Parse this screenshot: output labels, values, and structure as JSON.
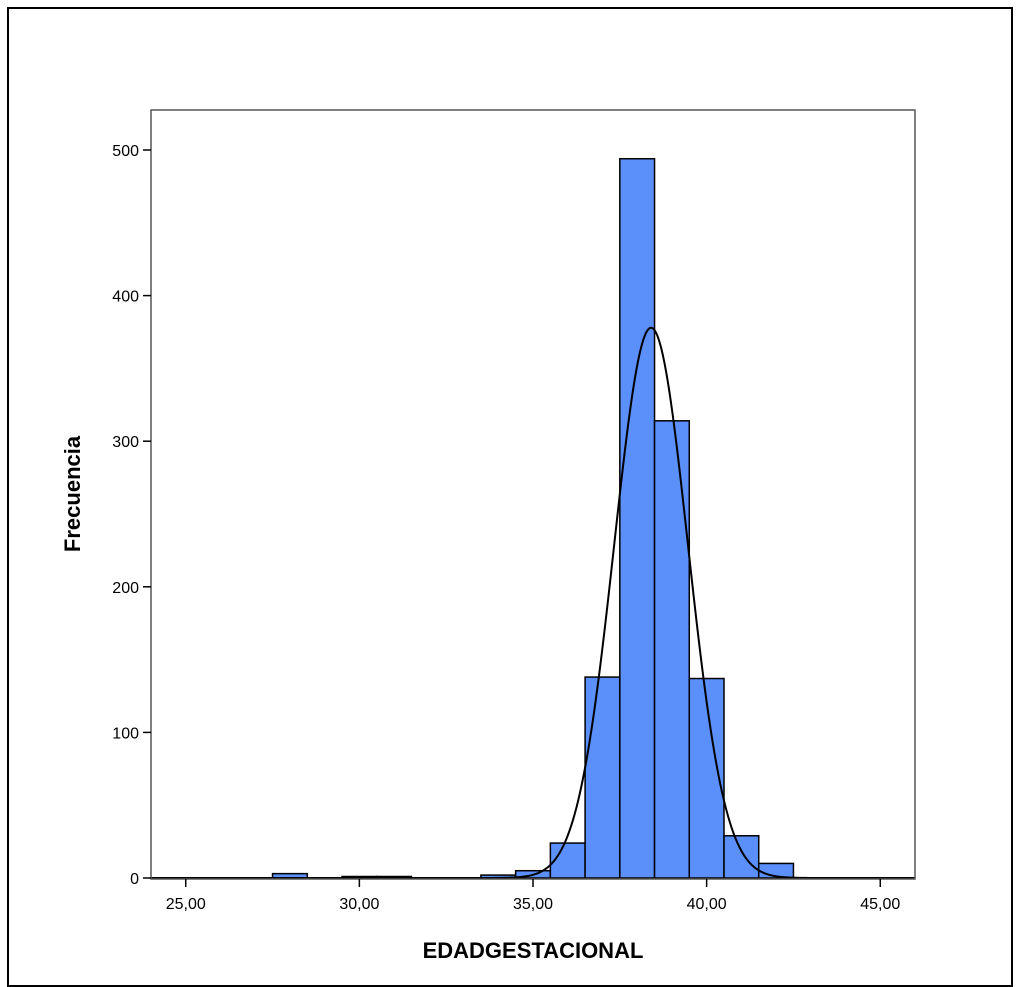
{
  "chart_data": {
    "type": "bar",
    "subtype": "histogram",
    "title": "",
    "xlabel": "EDADGESTACIONAL",
    "ylabel": "Frecuencia",
    "xlim": [
      24.0,
      46.0
    ],
    "ylim": [
      0,
      526
    ],
    "x_ticks": [
      25,
      30,
      35,
      40,
      45
    ],
    "x_tick_labels": [
      "25,00",
      "30,00",
      "35,00",
      "40,00",
      "45,00"
    ],
    "y_ticks": [
      0,
      100,
      200,
      300,
      400,
      500
    ],
    "y_tick_labels": [
      "0",
      "100",
      "200",
      "300",
      "400",
      "500"
    ],
    "bin_width": 1,
    "bins": [
      {
        "x0": 27.5,
        "x1": 28.5,
        "count": 3
      },
      {
        "x0": 29.5,
        "x1": 30.5,
        "count": 1
      },
      {
        "x0": 30.5,
        "x1": 31.5,
        "count": 1
      },
      {
        "x0": 33.5,
        "x1": 34.5,
        "count": 2
      },
      {
        "x0": 34.5,
        "x1": 35.5,
        "count": 5
      },
      {
        "x0": 35.5,
        "x1": 36.5,
        "count": 24
      },
      {
        "x0": 36.5,
        "x1": 37.5,
        "count": 138
      },
      {
        "x0": 37.5,
        "x1": 38.5,
        "count": 494
      },
      {
        "x0": 38.5,
        "x1": 39.5,
        "count": 314
      },
      {
        "x0": 39.5,
        "x1": 40.5,
        "count": 137
      },
      {
        "x0": 40.5,
        "x1": 41.5,
        "count": 29
      },
      {
        "x0": 41.5,
        "x1": 42.5,
        "count": 10
      }
    ],
    "normal_curve": {
      "mean": 38.4,
      "peak": 378,
      "sd": 1.06
    },
    "bar_color": "#5b8ff9",
    "bar_edge_color": "#000000",
    "curve_color": "#000000",
    "grid": false,
    "legend": "none"
  }
}
